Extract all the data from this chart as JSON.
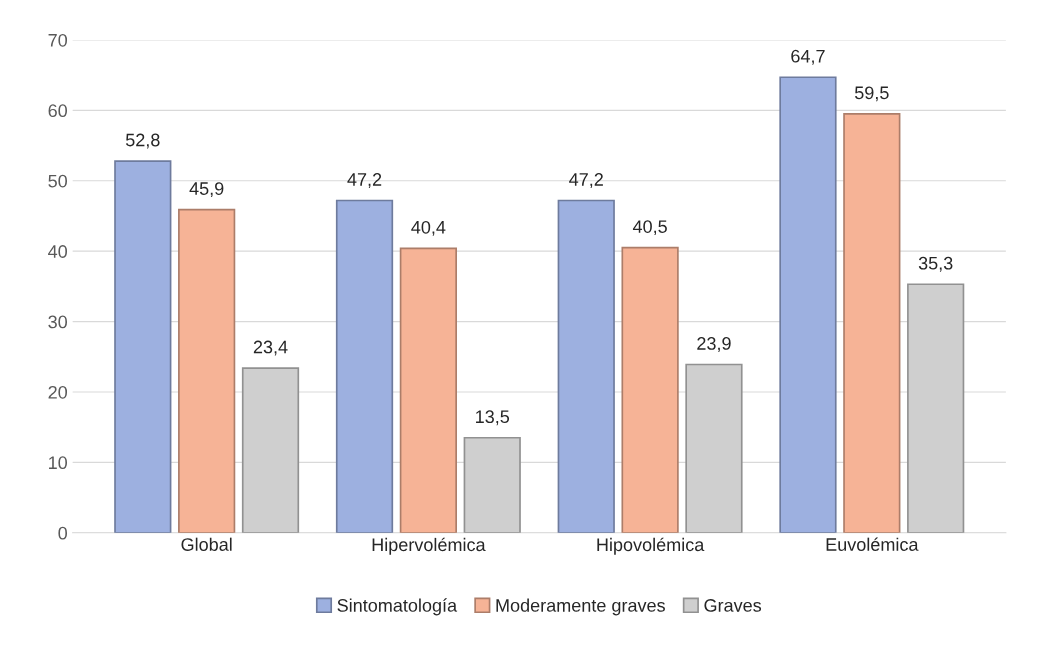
{
  "chart_data": {
    "type": "bar",
    "categories": [
      "Global",
      "Hipervolémica",
      "Hipovolémica",
      "Euvolémica"
    ],
    "series": [
      {
        "name": "Sintomatología",
        "color": "#9db0e0",
        "values": [
          52.8,
          47.2,
          47.2,
          64.7
        ],
        "value_labels": [
          "52,8",
          "47,2",
          "47,2",
          "64,7"
        ]
      },
      {
        "name": "Moderamente graves",
        "color": "#f6b396",
        "values": [
          45.9,
          40.4,
          40.5,
          59.5
        ],
        "value_labels": [
          "45,9",
          "40,4",
          "40,5",
          "59,5"
        ]
      },
      {
        "name": "Graves",
        "color": "#cfcfcf",
        "values": [
          23.4,
          13.5,
          23.9,
          35.3
        ],
        "value_labels": [
          "23,4",
          "13,5",
          "23,9",
          "35,3"
        ]
      }
    ],
    "ylim": [
      0,
      70
    ],
    "yticks": [
      0,
      10,
      20,
      30,
      40,
      50,
      60,
      70
    ],
    "grid": "y",
    "legend": "bottom"
  }
}
